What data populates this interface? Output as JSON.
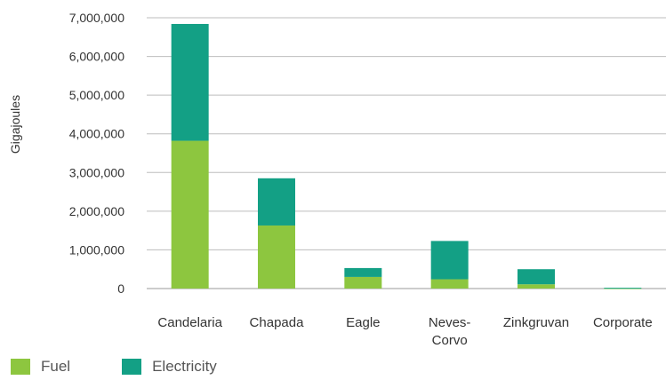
{
  "chart_data": {
    "type": "bar",
    "stacked": true,
    "ylabel": "Gigajoules",
    "xlabel": "",
    "ylim": [
      0,
      7000000
    ],
    "yticks": [
      0,
      1000000,
      2000000,
      3000000,
      4000000,
      5000000,
      6000000,
      7000000
    ],
    "ytick_labels": [
      "0",
      "1,000,000",
      "2,000,000",
      "3,000,000",
      "4,000,000",
      "5,000,000",
      "6,000,000",
      "7,000,000"
    ],
    "grid": true,
    "legend_position": "bottom-left",
    "categories": [
      [
        "Candelaria"
      ],
      [
        "Chapada"
      ],
      [
        "Eagle"
      ],
      [
        "Neves-",
        "Corvo"
      ],
      [
        "Zinkgruvan"
      ],
      [
        "Corporate"
      ]
    ],
    "series": [
      {
        "name": "Fuel",
        "color": "#8dc63f",
        "values": [
          3820000,
          1630000,
          300000,
          240000,
          110000,
          10000
        ]
      },
      {
        "name": "Electricity",
        "color": "#13a085",
        "values": [
          3020000,
          1220000,
          230000,
          990000,
          390000,
          10000
        ]
      }
    ]
  }
}
